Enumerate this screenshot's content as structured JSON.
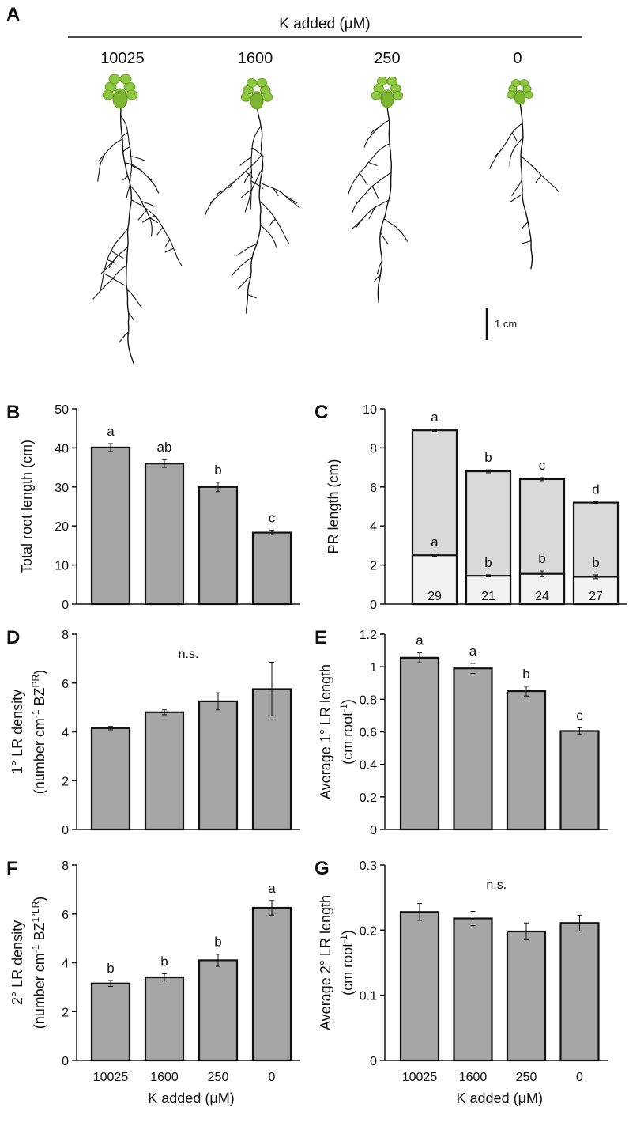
{
  "panel_a": {
    "label": "A",
    "title": "K added (μM)",
    "treatments": [
      "10025",
      "1600",
      "250",
      "0"
    ],
    "scale_bar": "1 cm"
  },
  "chart_data": [
    {
      "type": "bar",
      "panel": "B",
      "ylabel": [
        [
          {
            "t": "Total root length (cm)"
          }
        ]
      ],
      "values": [
        40.1,
        36,
        30,
        18.3
      ],
      "errors": [
        1.0,
        1.0,
        1.2,
        0.6
      ],
      "letters": [
        "a",
        "ab",
        "b",
        "c"
      ],
      "color": "#a6a6a6",
      "ylim": [
        0,
        50
      ],
      "yticks": [
        0,
        10,
        20,
        30,
        40,
        50
      ]
    },
    {
      "type": "overlay_bar",
      "panel": "C",
      "ylabel": [
        [
          {
            "t": "PR length (cm)"
          }
        ]
      ],
      "series": [
        {
          "color": "#d9d9d9",
          "values": [
            8.9,
            6.8,
            6.4,
            5.2
          ],
          "errors": [
            0.05,
            0.08,
            0.08,
            0.05
          ],
          "letters": [
            "a",
            "b",
            "c",
            "d"
          ]
        },
        {
          "color": "#f2f2f2",
          "values": [
            2.5,
            1.45,
            1.55,
            1.4
          ],
          "errors": [
            0.05,
            0.05,
            0.15,
            0.1
          ],
          "letters": [
            "a",
            "b",
            "b",
            "b"
          ],
          "percent_labels": [
            29,
            21,
            24,
            27
          ]
        }
      ],
      "ylim": [
        0,
        10
      ],
      "yticks": [
        0,
        2,
        4,
        6,
        8,
        10
      ]
    },
    {
      "type": "bar",
      "panel": "D",
      "ylabel": [
        [
          {
            "t": "1° LR density"
          }
        ],
        [
          {
            "t": "(number cm"
          },
          {
            "t": "-1",
            "sup": true
          },
          {
            "t": " BZ"
          },
          {
            "t": "PR",
            "sup": true
          },
          {
            "t": ")"
          }
        ]
      ],
      "values": [
        4.15,
        4.8,
        5.25,
        5.75
      ],
      "errors": [
        0.07,
        0.1,
        0.35,
        1.1
      ],
      "annotation": "n.s.",
      "color": "#a6a6a6",
      "ylim": [
        0,
        8
      ],
      "yticks": [
        0,
        2,
        4,
        6,
        8
      ]
    },
    {
      "type": "bar",
      "panel": "E",
      "ylabel": [
        [
          {
            "t": "Average 1° LR length"
          }
        ],
        [
          {
            "t": "(cm root"
          },
          {
            "t": "-1",
            "sup": true
          },
          {
            "t": ")"
          }
        ]
      ],
      "values": [
        1.055,
        0.99,
        0.85,
        0.605
      ],
      "errors": [
        0.03,
        0.03,
        0.03,
        0.02
      ],
      "letters": [
        "a",
        "a",
        "b",
        "c"
      ],
      "color": "#a6a6a6",
      "ylim": [
        0,
        1.2
      ],
      "yticks": [
        0,
        0.2,
        0.4,
        0.6,
        0.8,
        1,
        1.2
      ]
    },
    {
      "type": "bar",
      "panel": "F",
      "ylabel": [
        [
          {
            "t": "2° LR density"
          }
        ],
        [
          {
            "t": "(number cm"
          },
          {
            "t": "-1",
            "sup": true
          },
          {
            "t": " BZ"
          },
          {
            "t": "1°LR",
            "sup": true
          },
          {
            "t": ")"
          }
        ]
      ],
      "categories": [
        "10025",
        "1600",
        "250",
        "0"
      ],
      "xlabel": "K added (μM)",
      "values": [
        3.15,
        3.4,
        4.1,
        6.25
      ],
      "errors": [
        0.12,
        0.15,
        0.25,
        0.3
      ],
      "letters": [
        "b",
        "b",
        "b",
        "a"
      ],
      "color": "#a6a6a6",
      "ylim": [
        0,
        8
      ],
      "yticks": [
        0,
        2,
        4,
        6,
        8
      ]
    },
    {
      "type": "bar",
      "panel": "G",
      "ylabel": [
        [
          {
            "t": "Average 2° LR length"
          }
        ],
        [
          {
            "t": "(cm root"
          },
          {
            "t": "-1",
            "sup": true
          },
          {
            "t": ")"
          }
        ]
      ],
      "categories": [
        "10025",
        "1600",
        "250",
        "0"
      ],
      "xlabel": "K added (μM)",
      "values": [
        0.228,
        0.218,
        0.198,
        0.211
      ],
      "errors": [
        0.013,
        0.011,
        0.013,
        0.012
      ],
      "annotation": "n.s.",
      "color": "#a6a6a6",
      "ylim": [
        0,
        0.3
      ],
      "yticks": [
        0,
        0.1,
        0.2,
        0.3
      ]
    }
  ]
}
